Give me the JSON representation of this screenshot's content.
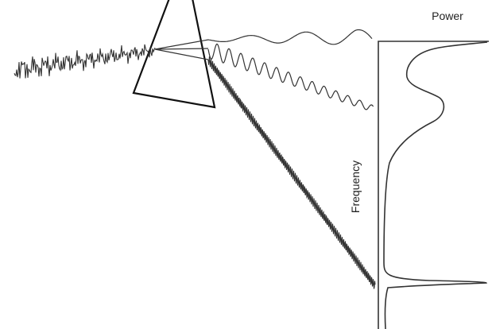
{
  "labels": {
    "power": "Power",
    "frequency": "Frequency"
  }
}
